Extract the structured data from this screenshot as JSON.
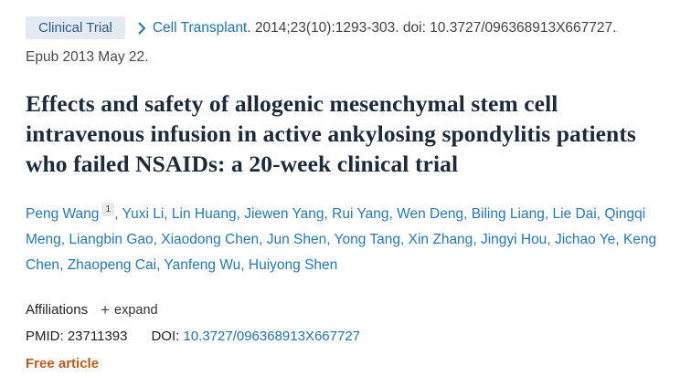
{
  "colors": {
    "link_blue": "#2173b2",
    "badge_bg": "#e4eaf2",
    "badge_text": "#2a5d87",
    "free_article_orange": "#bd5b1d",
    "title_dark": "#1c2a39"
  },
  "icons": {
    "chevron_right": "❯",
    "plus": "+"
  },
  "header": {
    "badge": "Clinical Trial",
    "journal": "Cell Transplant",
    "citation": ". 2014;23(10):1293-303. doi: 10.3727/096368913X667727.",
    "epub": "Epub 2013 May 22."
  },
  "title": "Effects and safety of allogenic mesenchymal stem cell intravenous infusion in active ankylosing spondylitis patients who failed NSAIDs: a 20-week clinical trial",
  "authors": [
    {
      "name": "Peng Wang",
      "sup": "1"
    },
    {
      "name": "Yuxi Li"
    },
    {
      "name": "Lin Huang"
    },
    {
      "name": "Jiewen Yang"
    },
    {
      "name": "Rui Yang"
    },
    {
      "name": "Wen Deng"
    },
    {
      "name": "Biling Liang"
    },
    {
      "name": "Lie Dai"
    },
    {
      "name": "Qingqi Meng"
    },
    {
      "name": "Liangbin Gao"
    },
    {
      "name": "Xiaodong Chen"
    },
    {
      "name": "Jun Shen"
    },
    {
      "name": "Yong Tang"
    },
    {
      "name": "Xin Zhang"
    },
    {
      "name": "Jingyi Hou"
    },
    {
      "name": "Jichao Ye"
    },
    {
      "name": "Keng Chen"
    },
    {
      "name": "Zhaopeng Cai"
    },
    {
      "name": "Yanfeng Wu"
    },
    {
      "name": "Huiyong Shen"
    }
  ],
  "affiliations": {
    "label": "Affiliations",
    "expand": "expand"
  },
  "ids": {
    "pmid_label": "PMID:",
    "pmid_value": "23711393",
    "doi_label": "DOI:",
    "doi_value": "10.3727/096368913X667727"
  },
  "free_article": "Free article"
}
